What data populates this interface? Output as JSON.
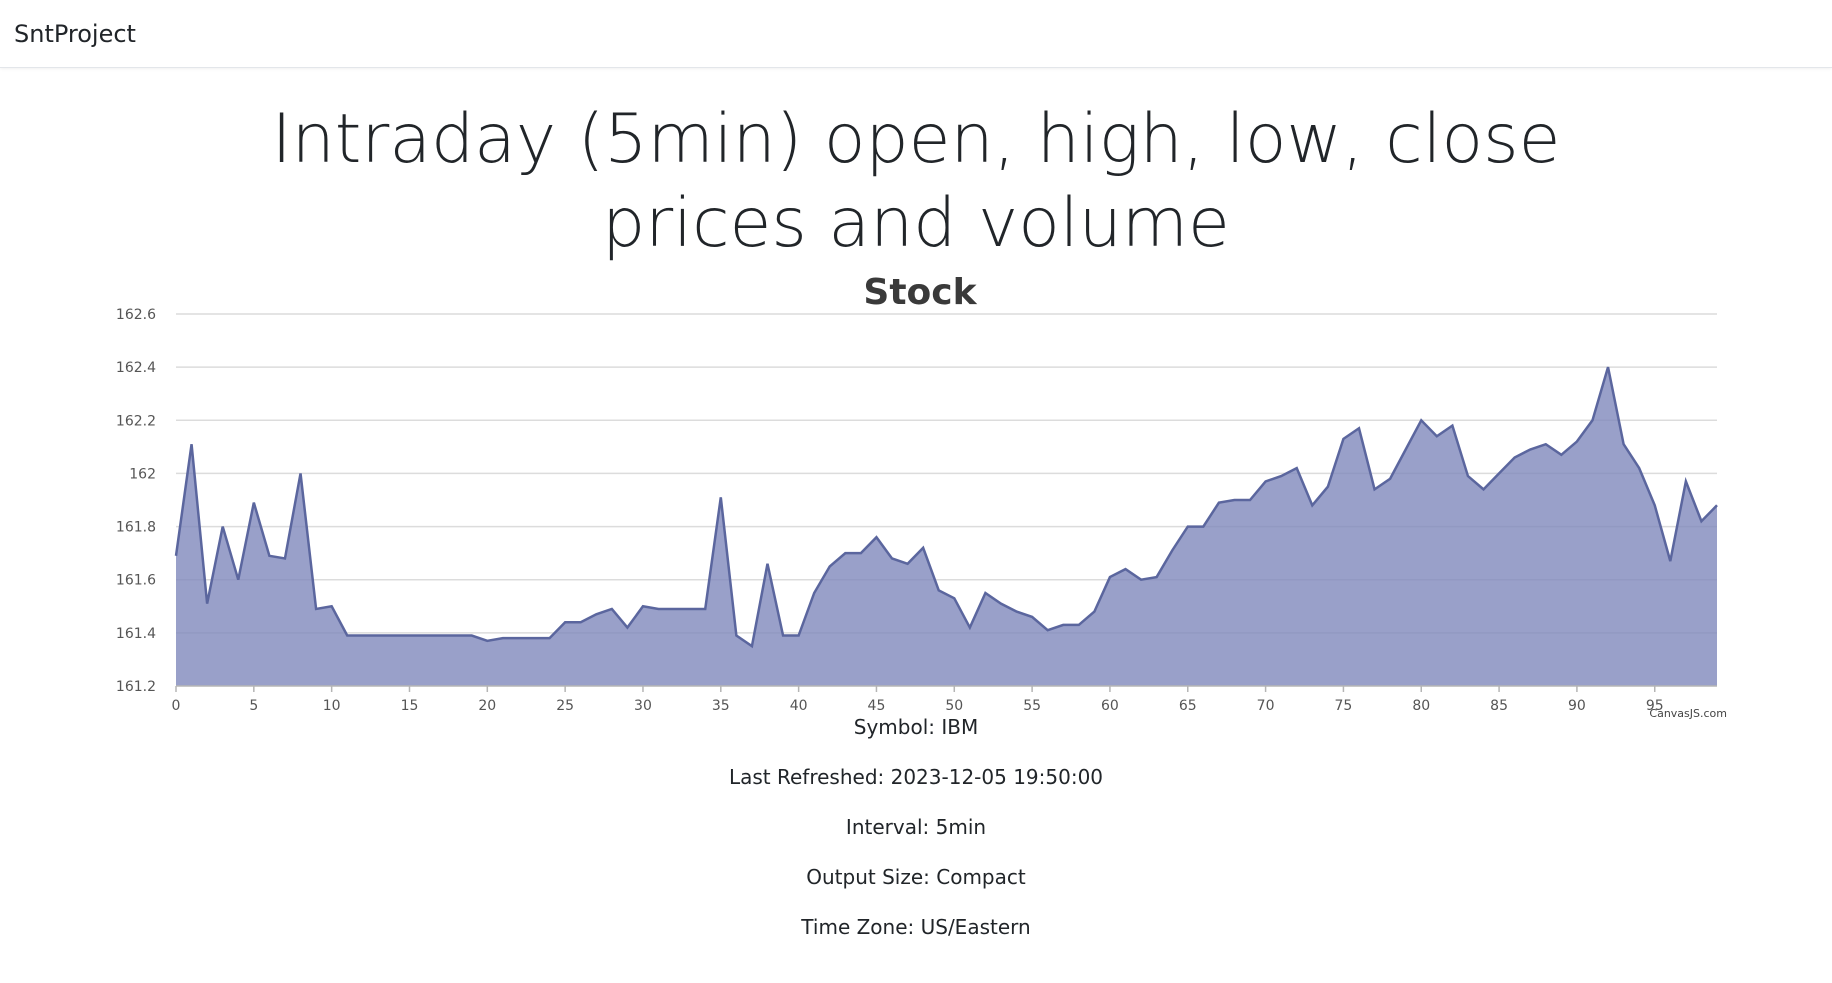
{
  "navbar": {
    "brand": "SntProject"
  },
  "page": {
    "title": "Intraday (5min) open, high, low, close prices and volume"
  },
  "chart_data": {
    "type": "area",
    "title": "Stock",
    "credit": "CanvasJS.com",
    "xlabel": "",
    "ylabel": "",
    "xlim": [
      0,
      99
    ],
    "ylim": [
      161.2,
      162.6
    ],
    "x_ticks": [
      0,
      5,
      10,
      15,
      20,
      25,
      30,
      35,
      40,
      45,
      50,
      55,
      60,
      65,
      70,
      75,
      80,
      85,
      90,
      95
    ],
    "y_ticks": [
      "161.2",
      "161.4",
      "161.6",
      "161.8",
      "162",
      "162.2",
      "162.4",
      "162.6"
    ],
    "grid": true,
    "colors": {
      "fill": "#7f88bb",
      "line": "#5b669e",
      "grid": "#dcdcdc",
      "axis": "#b5b5b5",
      "tick_text": "#555555"
    },
    "series": [
      {
        "x": [
          0,
          1,
          2,
          3,
          4,
          5,
          6,
          7,
          8,
          9,
          10,
          11,
          12,
          13,
          14,
          15,
          16,
          17,
          18,
          19,
          20,
          21,
          22,
          23,
          24,
          25,
          26,
          27,
          28,
          29,
          30,
          31,
          32,
          33,
          34,
          35,
          36,
          37,
          38,
          39,
          40,
          41,
          42,
          43,
          44,
          45,
          46,
          47,
          48,
          49,
          50,
          51,
          52,
          53,
          54,
          55,
          56,
          57,
          58,
          59,
          60,
          61,
          62,
          63,
          64,
          65,
          66,
          67,
          68,
          69,
          70,
          71,
          72,
          73,
          74,
          75,
          76,
          77,
          78,
          79,
          80,
          81,
          82,
          83,
          84,
          85,
          86,
          87,
          88,
          89,
          90,
          91,
          92,
          93,
          94,
          95,
          96,
          97,
          98,
          99
        ],
        "values": [
          161.69,
          162.11,
          161.51,
          161.8,
          161.6,
          161.89,
          161.69,
          161.68,
          162.0,
          161.49,
          161.5,
          161.39,
          161.39,
          161.39,
          161.39,
          161.39,
          161.39,
          161.39,
          161.39,
          161.39,
          161.37,
          161.38,
          161.38,
          161.38,
          161.38,
          161.44,
          161.44,
          161.47,
          161.49,
          161.42,
          161.5,
          161.49,
          161.49,
          161.49,
          161.49,
          161.91,
          161.39,
          161.35,
          161.66,
          161.39,
          161.39,
          161.55,
          161.65,
          161.7,
          161.7,
          161.76,
          161.68,
          161.66,
          161.72,
          161.56,
          161.53,
          161.42,
          161.55,
          161.51,
          161.48,
          161.46,
          161.41,
          161.43,
          161.43,
          161.48,
          161.61,
          161.64,
          161.6,
          161.61,
          161.71,
          161.8,
          161.8,
          161.89,
          161.9,
          161.9,
          161.97,
          161.99,
          162.02,
          161.88,
          161.95,
          162.13,
          162.17,
          161.94,
          161.98,
          162.09,
          162.2,
          162.14,
          162.18,
          161.99,
          161.94,
          162.0,
          162.06,
          162.09,
          162.11,
          162.07,
          162.12,
          162.2,
          162.4,
          162.11,
          162.02,
          161.88,
          161.67,
          161.97,
          161.82,
          161.88
        ]
      }
    ]
  },
  "info": {
    "symbol": "Symbol: IBM",
    "last_refreshed": "Last Refreshed: 2023-12-05 19:50:00",
    "interval": "Interval: 5min",
    "output_size": "Output Size: Compact",
    "time_zone": "Time Zone: US/Eastern"
  }
}
